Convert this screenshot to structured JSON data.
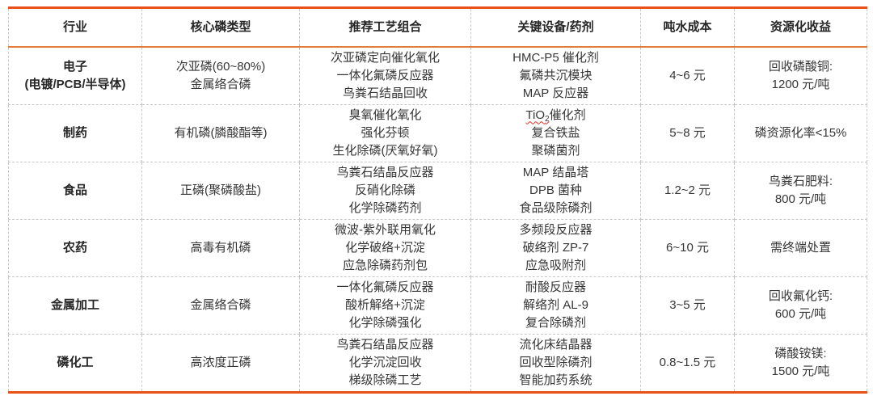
{
  "colors": {
    "accent_thick_border": "#E8511C",
    "accent_thin_border": "#DF7D3A",
    "grid_dashed": "#C7C7C7",
    "body_text": "#363636",
    "bold_text": "#262626",
    "spellcheck_underline": "#D93025"
  },
  "table": {
    "columns": [
      {
        "key": "industry",
        "label": "行业"
      },
      {
        "key": "phosphorus",
        "label": "核心磷类型"
      },
      {
        "key": "process",
        "label": "推荐工艺组合"
      },
      {
        "key": "equipment",
        "label": "关键设备/药剂"
      },
      {
        "key": "cost",
        "label": "吨水成本"
      },
      {
        "key": "benefit",
        "label": "资源化收益"
      }
    ],
    "rows": [
      {
        "industry": [
          "电子",
          "(电镀/PCB/半导体)"
        ],
        "phosphorus": [
          "次亚磷(60~80%)",
          "金属络合磷"
        ],
        "process": [
          "次亚磷定向催化氧化",
          "一体化氟磷反应器",
          "鸟粪石结晶回收"
        ],
        "equipment": [
          "HMC-P5 催化剂",
          "氟磷共沉模块",
          "MAP 反应器"
        ],
        "cost": [
          "4~6 元"
        ],
        "benefit": [
          "回收磷酸铜:",
          "1200 元/吨"
        ]
      },
      {
        "industry": [
          "制药"
        ],
        "phosphorus": [
          "有机磷(膦酸酯等)"
        ],
        "process": [
          "臭氧催化氧化",
          "强化芬顿",
          "生化除磷(厌氧好氧)"
        ],
        "equipment": [
          {
            "wavy_base": "TiO",
            "wavy_sub": "2",
            "rest": "催化剂"
          },
          "复合铁盐",
          "聚磷菌剂"
        ],
        "cost": [
          "5~8 元"
        ],
        "benefit": [
          "磷资源化率<15%"
        ]
      },
      {
        "industry": [
          "食品"
        ],
        "phosphorus": [
          "正磷(聚磷酸盐)"
        ],
        "process": [
          "鸟粪石结晶反应器",
          "反硝化除磷",
          "化学除磷药剂"
        ],
        "equipment": [
          "MAP 结晶塔",
          "DPB 菌种",
          "食品级除磷剂"
        ],
        "cost": [
          "1.2~2 元"
        ],
        "benefit": [
          "鸟粪石肥料:",
          "800 元/吨"
        ]
      },
      {
        "industry": [
          "农药"
        ],
        "phosphorus": [
          "高毒有机磷"
        ],
        "process": [
          "微波-紫外联用氧化",
          "化学破络+沉淀",
          "应急除磷药剂包"
        ],
        "equipment": [
          "多频段反应器",
          "破络剂 ZP-7",
          "应急吸附剂"
        ],
        "cost": [
          "6~10 元"
        ],
        "benefit": [
          "需终端处置"
        ]
      },
      {
        "industry": [
          "金属加工"
        ],
        "phosphorus": [
          "金属络合磷"
        ],
        "process": [
          "一体化氟磷反应器",
          "酸析解络+沉淀",
          "化学除磷强化"
        ],
        "equipment": [
          "耐酸反应器",
          "解络剂 AL-9",
          "复合除磷剂"
        ],
        "cost": [
          "3~5 元"
        ],
        "benefit": [
          "回收氟化钙:",
          "600 元/吨"
        ]
      },
      {
        "industry": [
          "磷化工"
        ],
        "phosphorus": [
          "高浓度正磷"
        ],
        "process": [
          "鸟粪石结晶反应器",
          "化学沉淀回收",
          "梯级除磷工艺"
        ],
        "equipment": [
          "流化床结晶器",
          "回收型除磷剂",
          "智能加药系统"
        ],
        "cost": [
          "0.8~1.5 元"
        ],
        "benefit": [
          "磷酸铵镁:",
          "1500 元/吨"
        ]
      }
    ]
  }
}
